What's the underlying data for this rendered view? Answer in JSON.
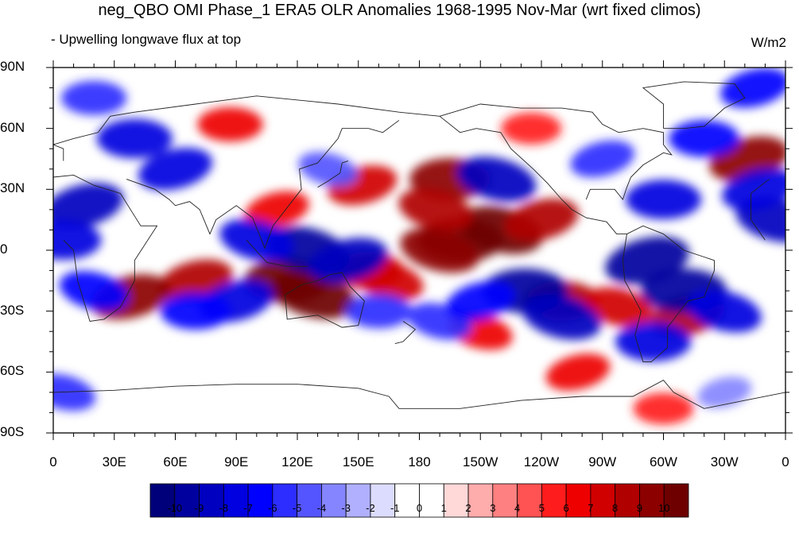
{
  "header": {
    "title": "neg_QBO OMI Phase_1 ERA5 OLR Anomalies 1968-1995 Nov-Mar (wrt fixed climos)",
    "subtitle": "- Upwelling longwave flux at top",
    "units": "W/m2"
  },
  "axes": {
    "y_ticks": [
      "90N",
      "60N",
      "30N",
      "0",
      "30S",
      "60S",
      "90S"
    ],
    "x_ticks": [
      "0",
      "30E",
      "60E",
      "90E",
      "120E",
      "150E",
      "180",
      "150W",
      "120W",
      "90W",
      "60W",
      "30W",
      "0"
    ]
  },
  "colorbar": {
    "colors": [
      "#00007a",
      "#00009e",
      "#0000c0",
      "#0000e0",
      "#0000ff",
      "#2d2dff",
      "#5555ff",
      "#8585ff",
      "#b0b0ff",
      "#dcdcff",
      "#ffffff",
      "#ffffff",
      "#ffd8d8",
      "#ffacac",
      "#ff8080",
      "#ff5252",
      "#ff1c1c",
      "#ee0000",
      "#d00000",
      "#b00000",
      "#8c0000",
      "#6e0000"
    ],
    "labels": [
      "-10",
      "-9",
      "-8",
      "-7",
      "-6",
      "-5",
      "-4",
      "-3",
      "-2",
      "-1",
      "0",
      "1",
      "2",
      "3",
      "4",
      "5",
      "6",
      "7",
      "8",
      "9",
      "10"
    ]
  },
  "map": {
    "projection": "cylindrical equidistant",
    "lon_range": [
      0,
      360
    ],
    "lat_range": [
      -90,
      90
    ],
    "blobs": [
      {
        "lon": 70,
        "lat": -15,
        "v": 8
      },
      {
        "lon": 115,
        "lat": -15,
        "v": 10
      },
      {
        "lon": 128,
        "lat": -22,
        "v": 10
      },
      {
        "lon": 38,
        "lat": -23,
        "v": 9
      },
      {
        "lon": 200,
        "lat": 5,
        "v": 10
      },
      {
        "lon": 220,
        "lat": 10,
        "v": 10
      },
      {
        "lon": 240,
        "lat": 15,
        "v": 8
      },
      {
        "lon": 195,
        "lat": 35,
        "v": 9
      },
      {
        "lon": 188,
        "lat": 20,
        "v": 8
      },
      {
        "lon": 152,
        "lat": 32,
        "v": 7
      },
      {
        "lon": 250,
        "lat": -25,
        "v": 8
      },
      {
        "lon": 278,
        "lat": -28,
        "v": 7
      },
      {
        "lon": 312,
        "lat": -32,
        "v": 8
      },
      {
        "lon": 155,
        "lat": -10,
        "v": 7
      },
      {
        "lon": 165,
        "lat": -15,
        "v": 7
      },
      {
        "lon": 342,
        "lat": 45,
        "v": 9
      },
      {
        "lon": 87,
        "lat": 62,
        "v": 6
      },
      {
        "lon": 210,
        "lat": -40,
        "v": 6
      },
      {
        "lon": 258,
        "lat": -60,
        "v": 6
      },
      {
        "lon": 300,
        "lat": -78,
        "v": 5
      },
      {
        "lon": 190,
        "lat": 0,
        "v": 9
      },
      {
        "lon": 110,
        "lat": 20,
        "v": 6
      },
      {
        "lon": 235,
        "lat": 60,
        "v": 5
      },
      {
        "lon": 125,
        "lat": 0,
        "v": -10
      },
      {
        "lon": 145,
        "lat": -5,
        "v": -9
      },
      {
        "lon": 232,
        "lat": -20,
        "v": -10
      },
      {
        "lon": 250,
        "lat": -33,
        "v": -9
      },
      {
        "lon": 292,
        "lat": -5,
        "v": -10
      },
      {
        "lon": 310,
        "lat": -20,
        "v": -10
      },
      {
        "lon": 330,
        "lat": -30,
        "v": -8
      },
      {
        "lon": 15,
        "lat": 22,
        "v": -9
      },
      {
        "lon": 5,
        "lat": 5,
        "v": -8
      },
      {
        "lon": 355,
        "lat": 15,
        "v": -9
      },
      {
        "lon": 347,
        "lat": 30,
        "v": -8
      },
      {
        "lon": 300,
        "lat": 25,
        "v": -8
      },
      {
        "lon": 218,
        "lat": 35,
        "v": -9
      },
      {
        "lon": 60,
        "lat": 40,
        "v": -8
      },
      {
        "lon": 40,
        "lat": 55,
        "v": -8
      },
      {
        "lon": 100,
        "lat": 5,
        "v": -8
      },
      {
        "lon": 90,
        "lat": -25,
        "v": -8
      },
      {
        "lon": 70,
        "lat": -30,
        "v": -7
      },
      {
        "lon": 20,
        "lat": -20,
        "v": -7
      },
      {
        "lon": 270,
        "lat": 45,
        "v": -6
      },
      {
        "lon": 320,
        "lat": 55,
        "v": -7
      },
      {
        "lon": 190,
        "lat": -35,
        "v": -6
      },
      {
        "lon": 210,
        "lat": -25,
        "v": -7
      },
      {
        "lon": 295,
        "lat": -45,
        "v": -8
      },
      {
        "lon": 5,
        "lat": -70,
        "v": -6
      },
      {
        "lon": 345,
        "lat": 80,
        "v": -7
      },
      {
        "lon": 20,
        "lat": 75,
        "v": -6
      },
      {
        "lon": 135,
        "lat": 40,
        "v": -5
      },
      {
        "lon": 330,
        "lat": -70,
        "v": -4
      },
      {
        "lon": 160,
        "lat": -30,
        "v": -6
      }
    ]
  }
}
